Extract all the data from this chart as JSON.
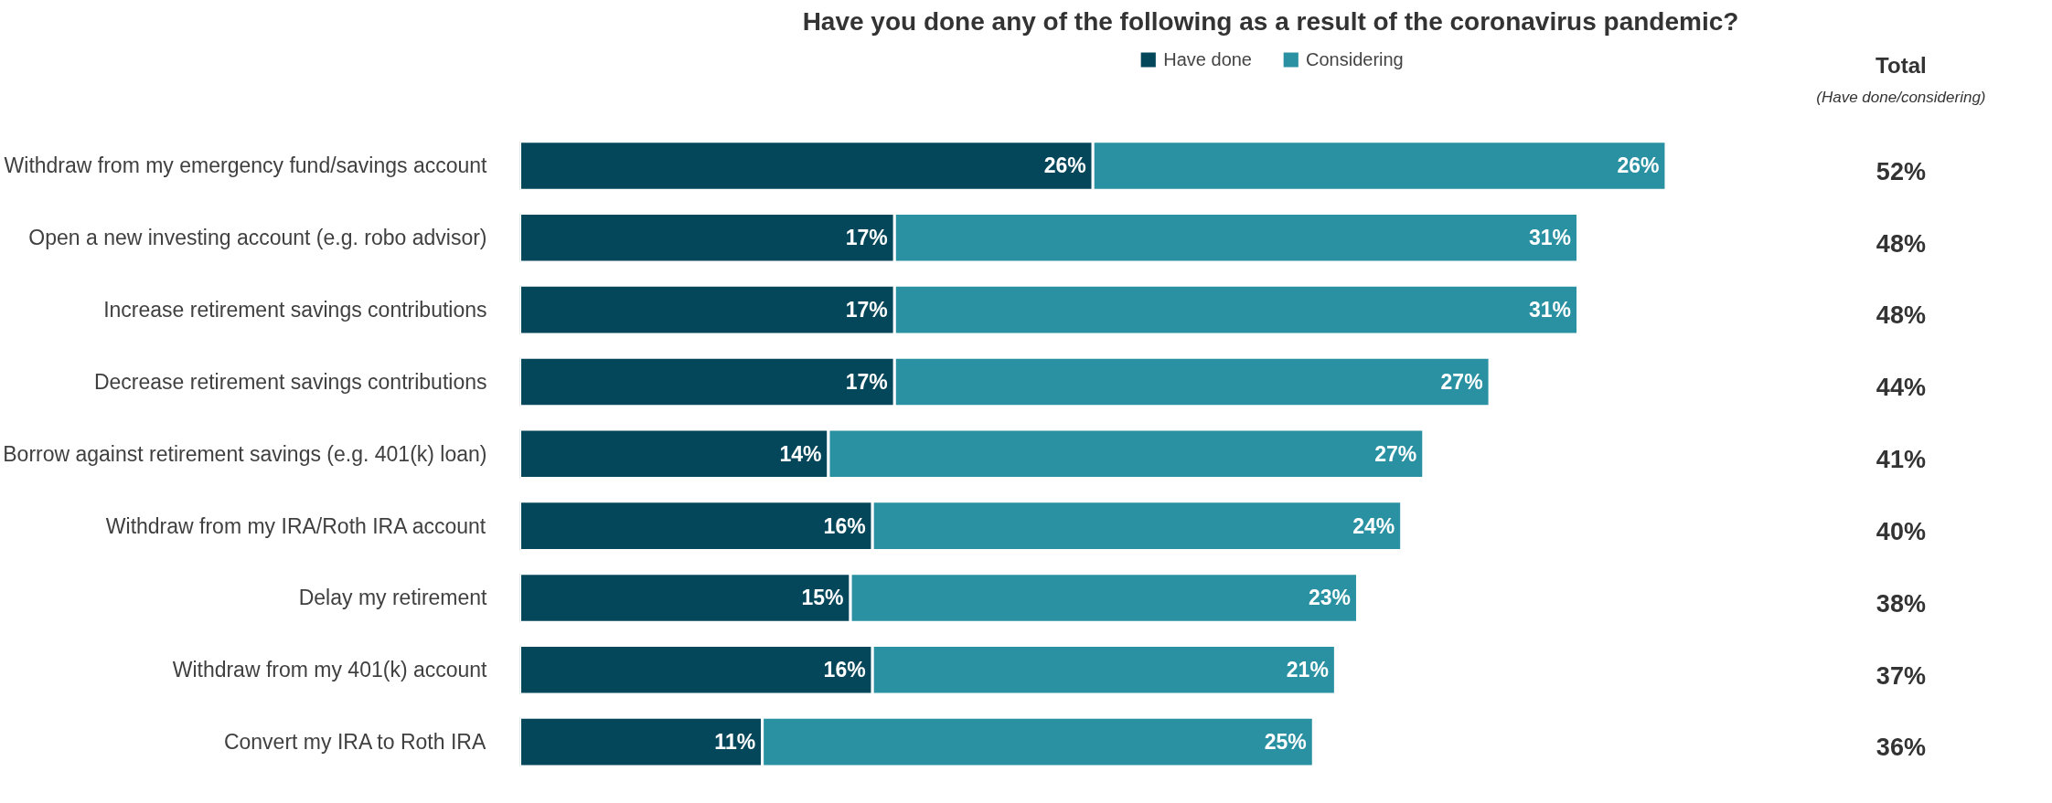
{
  "chart_data": {
    "type": "bar",
    "orientation": "horizontal",
    "stacked": true,
    "legend": "top",
    "grid": false,
    "title": "Have you done any of the following as a result of the coronavirus pandemic?",
    "categories": [
      "Withdraw from my emergency fund/savings account",
      "Open a new investing account (e.g. robo advisor)",
      "Increase retirement savings contributions",
      "Decrease retirement savings contributions",
      "Borrow against retirement savings (e.g. 401(k) loan)",
      "Withdraw from my IRA/Roth IRA account",
      "Delay my retirement",
      "Withdraw from my 401(k) account",
      "Convert my IRA to Roth IRA"
    ],
    "series": [
      {
        "name": "Have done",
        "color": "#04475a",
        "values": [
          26,
          17,
          17,
          17,
          14,
          16,
          15,
          16,
          11
        ],
        "value_labels": [
          "26%",
          "17%",
          "17%",
          "17%",
          "14%",
          "16%",
          "15%",
          "16%",
          "11%"
        ]
      },
      {
        "name": "Considering",
        "color": "#2a91a2",
        "values": [
          26,
          31,
          31,
          27,
          27,
          24,
          23,
          21,
          25
        ],
        "value_labels": [
          "26%",
          "31%",
          "31%",
          "27%",
          "27%",
          "24%",
          "23%",
          "21%",
          "25%"
        ]
      }
    ],
    "annotations": [
      "Total",
      "(Have done/considering)",
      "52%",
      "48%",
      "48%",
      "44%",
      "41%",
      "40%",
      "38%",
      "37%",
      "36%"
    ]
  }
}
